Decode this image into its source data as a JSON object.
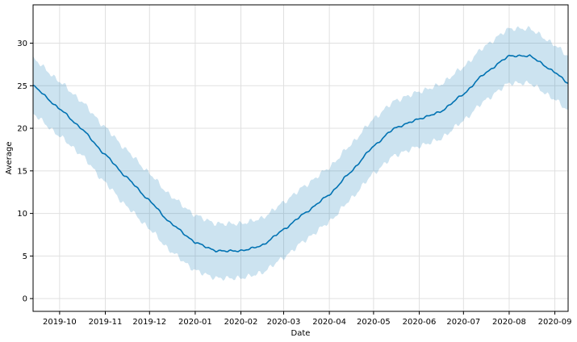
{
  "chart_data": {
    "type": "line",
    "title": "",
    "xlabel": "Date",
    "ylabel": "Average",
    "grid": true,
    "legend": "none",
    "xlim": [
      "2019-09-13",
      "2020-09-10"
    ],
    "ylim": [
      -1.5,
      34.5
    ],
    "x_ticks": [
      "2019-10",
      "2019-11",
      "2019-12",
      "2020-01",
      "2020-02",
      "2020-03",
      "2020-04",
      "2020-05",
      "2020-06",
      "2020-07",
      "2020-08",
      "2020-09"
    ],
    "y_ticks": [
      "0",
      "5",
      "10",
      "15",
      "20",
      "25",
      "30"
    ],
    "colors": {
      "line": "#0072B2",
      "band": "#0072B2",
      "grid": "#e0e0e0",
      "frame": "#000000"
    },
    "series": [
      {
        "x": [
          "2019-09-13",
          "2019-10-01",
          "2019-10-15",
          "2019-11-01",
          "2019-11-15",
          "2019-12-01",
          "2019-12-15",
          "2020-01-01",
          "2020-01-15",
          "2020-02-01",
          "2020-02-15",
          "2020-03-01",
          "2020-03-15",
          "2020-04-01",
          "2020-04-15",
          "2020-05-01",
          "2020-05-15",
          "2020-06-01",
          "2020-06-15",
          "2020-07-01",
          "2020-07-15",
          "2020-08-01",
          "2020-08-15",
          "2020-09-01",
          "2020-09-10"
        ],
        "y": [
          25.0,
          22.3,
          20.1,
          16.9,
          14.3,
          11.5,
          8.9,
          6.6,
          5.6,
          5.6,
          6.2,
          8.1,
          10.0,
          12.2,
          14.8,
          17.9,
          20.0,
          21.1,
          21.9,
          24.0,
          26.4,
          28.5,
          28.5,
          26.6,
          25.3
        ],
        "lower": [
          21.7,
          19.1,
          17.0,
          13.6,
          10.9,
          8.2,
          5.6,
          3.3,
          2.4,
          2.4,
          3.0,
          4.8,
          6.8,
          9.0,
          11.6,
          14.7,
          16.8,
          17.9,
          18.7,
          20.9,
          23.2,
          25.3,
          25.3,
          23.4,
          22.1
        ],
        "upper": [
          28.2,
          25.5,
          23.3,
          20.1,
          17.5,
          14.7,
          12.1,
          9.8,
          8.8,
          8.8,
          9.4,
          11.3,
          13.2,
          15.4,
          18.0,
          21.1,
          23.2,
          24.3,
          25.1,
          27.2,
          29.6,
          31.7,
          31.7,
          29.8,
          28.5
        ]
      }
    ]
  }
}
